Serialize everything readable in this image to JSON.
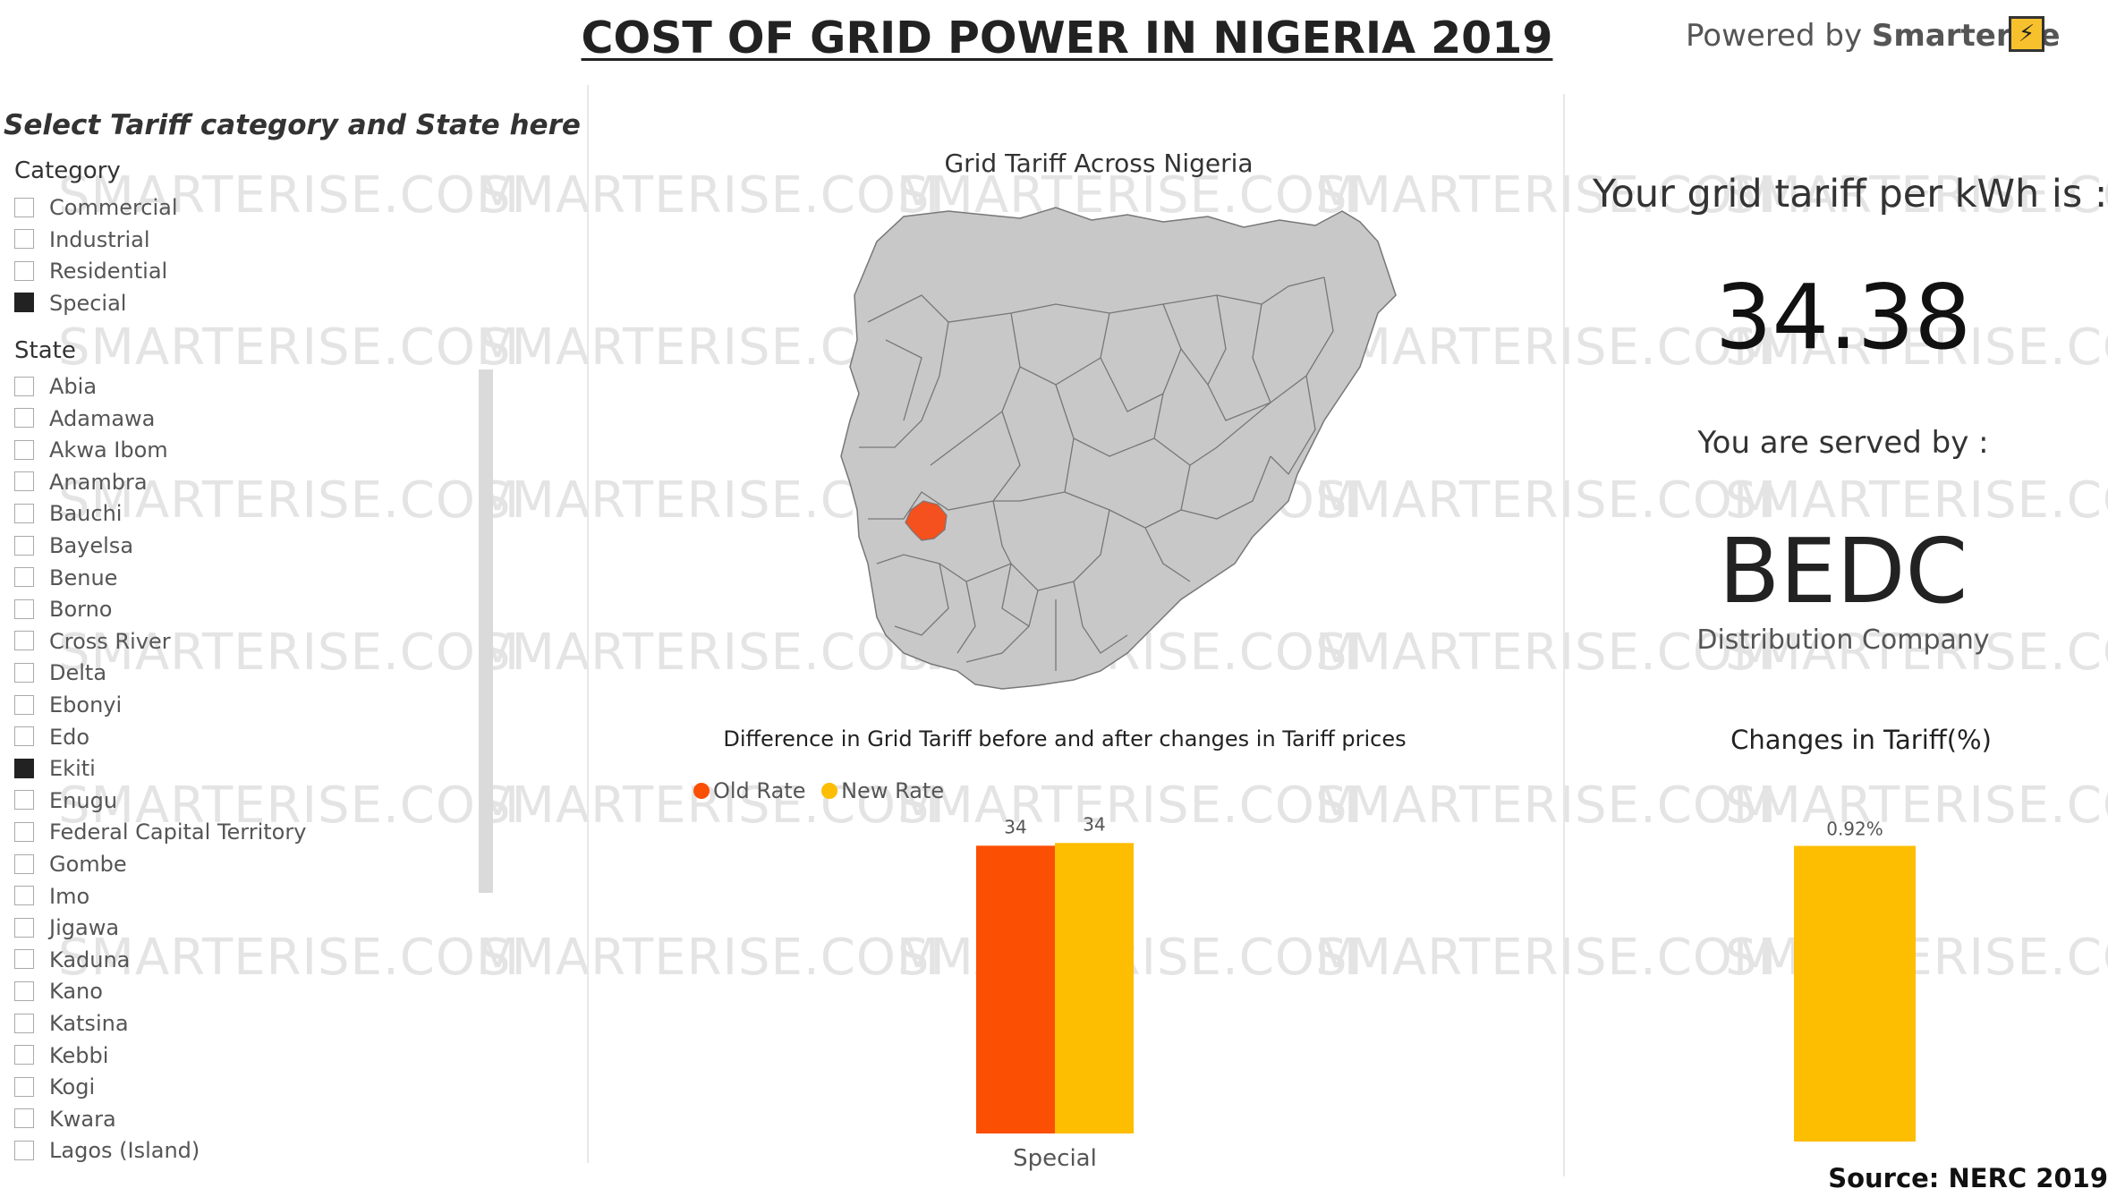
{
  "header": {
    "title": "COST OF GRID POWER IN NIGERIA 2019",
    "powered_prefix": "Powered by ",
    "powered_brand": "Smarterise"
  },
  "watermark_text": "SMARTERISE.COM",
  "slicer": {
    "heading": "Select Tariff category and State here",
    "category_label": "Category",
    "categories": [
      {
        "label": "Commercial",
        "selected": false
      },
      {
        "label": "Industrial",
        "selected": false
      },
      {
        "label": "Residential",
        "selected": false
      },
      {
        "label": "Special",
        "selected": true
      }
    ],
    "state_label": "State",
    "states": [
      {
        "label": "Abia",
        "selected": false
      },
      {
        "label": "Adamawa",
        "selected": false
      },
      {
        "label": "Akwa Ibom",
        "selected": false
      },
      {
        "label": "Anambra",
        "selected": false
      },
      {
        "label": "Bauchi",
        "selected": false
      },
      {
        "label": "Bayelsa",
        "selected": false
      },
      {
        "label": "Benue",
        "selected": false
      },
      {
        "label": "Borno",
        "selected": false
      },
      {
        "label": "Cross River",
        "selected": false
      },
      {
        "label": "Delta",
        "selected": false
      },
      {
        "label": "Ebonyi",
        "selected": false
      },
      {
        "label": "Edo",
        "selected": false
      },
      {
        "label": "Ekiti",
        "selected": true
      },
      {
        "label": "Enugu",
        "selected": false
      },
      {
        "label": "Federal Capital Territory",
        "selected": false
      },
      {
        "label": "Gombe",
        "selected": false
      },
      {
        "label": "Imo",
        "selected": false
      },
      {
        "label": "Jigawa",
        "selected": false
      },
      {
        "label": "Kaduna",
        "selected": false
      },
      {
        "label": "Kano",
        "selected": false
      },
      {
        "label": "Katsina",
        "selected": false
      },
      {
        "label": "Kebbi",
        "selected": false
      },
      {
        "label": "Kogi",
        "selected": false
      },
      {
        "label": "Kwara",
        "selected": false
      },
      {
        "label": "Lagos (Island)",
        "selected": false
      }
    ]
  },
  "map": {
    "title": "Grid Tariff Across Nigeria",
    "base_color": "#c8c8c8",
    "highlight_color": "#f4511e"
  },
  "kpi": {
    "tariff_label": "Your grid tariff per kWh is :",
    "tariff_value": "34.38",
    "served_label": "You are served by :",
    "disco": "BEDC",
    "disco_sub": "Distribution Company"
  },
  "chart_data": [
    {
      "type": "bar",
      "title": "Difference in Grid Tariff before and after changes in Tariff prices",
      "categories": [
        "Special"
      ],
      "series": [
        {
          "name": "Old Rate",
          "values": [
            34.06
          ],
          "color": "#fb4f04",
          "data_label": "34"
        },
        {
          "name": "New Rate",
          "values": [
            34.38
          ],
          "color": "#fdbd00",
          "data_label": "34"
        }
      ],
      "ylim": [
        0,
        36
      ],
      "legend": "top-left",
      "grid": false
    },
    {
      "type": "bar",
      "title": "Changes in Tariff(%)",
      "categories": [
        ""
      ],
      "values": [
        0.92
      ],
      "color": "#fdbd00",
      "data_label": "0.92%",
      "ylim": [
        0,
        1.03
      ],
      "grid": false
    }
  ],
  "footer": {
    "source": "Source: NERC 2019"
  }
}
